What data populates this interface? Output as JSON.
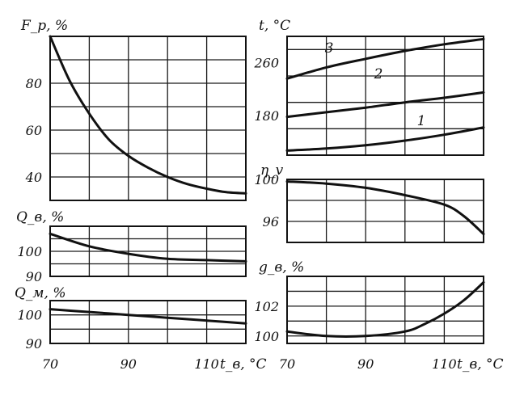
{
  "chart_data": [
    {
      "id": "fp",
      "type": "line",
      "ylabel": "F_p, %",
      "xlabel": "",
      "xlim": [
        70,
        120
      ],
      "ylim": [
        30,
        100
      ],
      "x_ticks": [],
      "y_ticks": [
        40,
        60,
        80
      ],
      "x_grid": [
        70,
        80,
        90,
        100,
        110,
        120
      ],
      "y_grid": [
        30,
        40,
        50,
        60,
        70,
        80,
        90,
        100
      ],
      "series": [
        {
          "name": "",
          "x": [
            70,
            75,
            80,
            85,
            90,
            95,
            100,
            105,
            110,
            115,
            120
          ],
          "y": [
            100,
            81,
            67,
            56,
            49,
            44,
            40,
            37,
            35,
            33.5,
            33
          ]
        }
      ]
    },
    {
      "id": "t",
      "type": "line",
      "ylabel": "t, °C",
      "xlabel": "",
      "xlim": [
        70,
        120
      ],
      "ylim": [
        120,
        300
      ],
      "x_ticks": [],
      "y_ticks": [
        180,
        260
      ],
      "x_grid": [
        70,
        80,
        90,
        100,
        110,
        120
      ],
      "y_grid": [
        120,
        160,
        200,
        240,
        280,
        300
      ],
      "series": [
        {
          "name": "1",
          "x": [
            70,
            80,
            90,
            100,
            110,
            120
          ],
          "y": [
            127,
            130,
            135,
            142,
            151,
            162
          ]
        },
        {
          "name": "2",
          "x": [
            70,
            80,
            90,
            100,
            110,
            120
          ],
          "y": [
            178,
            185,
            192,
            200,
            207,
            215
          ]
        },
        {
          "name": "3",
          "x": [
            70,
            80,
            90,
            100,
            110,
            120
          ],
          "y": [
            236,
            253,
            266,
            278,
            288,
            296
          ]
        }
      ]
    },
    {
      "id": "qb",
      "type": "line",
      "ylabel": "Q_в, %",
      "xlabel": "",
      "xlim": [
        70,
        120
      ],
      "ylim": [
        90,
        110
      ],
      "x_ticks": [],
      "y_ticks": [
        90,
        100
      ],
      "x_grid": [
        70,
        80,
        90,
        100,
        110,
        120
      ],
      "y_grid": [
        90,
        95,
        100,
        105,
        110
      ],
      "series": [
        {
          "name": "",
          "x": [
            70,
            80,
            90,
            100,
            110,
            120
          ],
          "y": [
            107,
            102,
            99,
            97,
            96.5,
            96
          ]
        }
      ]
    },
    {
      "id": "eta",
      "type": "line",
      "ylabel": "η_v",
      "xlabel": "",
      "xlim": [
        70,
        120
      ],
      "ylim": [
        94,
        100
      ],
      "x_ticks": [],
      "y_ticks": [
        96,
        100
      ],
      "x_grid": [
        70,
        80,
        90,
        100,
        110,
        120
      ],
      "y_grid": [
        94,
        96,
        98,
        100
      ],
      "series": [
        {
          "name": "",
          "x": [
            70,
            80,
            90,
            100,
            110,
            115,
            120
          ],
          "y": [
            99.8,
            99.6,
            99.2,
            98.5,
            97.6,
            96.5,
            94.8
          ]
        }
      ]
    },
    {
      "id": "qm",
      "type": "line",
      "ylabel": "Q_м, %",
      "xlabel": "t_в, °C",
      "xlim": [
        70,
        120
      ],
      "ylim": [
        90,
        105
      ],
      "x_ticks": [
        70,
        90,
        110
      ],
      "y_ticks": [
        90,
        100
      ],
      "x_grid": [
        70,
        80,
        90,
        100,
        110,
        120
      ],
      "y_grid": [
        90,
        95,
        100,
        105
      ],
      "series": [
        {
          "name": "",
          "x": [
            70,
            80,
            90,
            100,
            110,
            120
          ],
          "y": [
            102,
            101,
            100,
            99,
            98,
            97
          ]
        }
      ]
    },
    {
      "id": "gb",
      "type": "line",
      "ylabel": "g_в, %",
      "xlabel": "t_в, °C",
      "xlim": [
        70,
        120
      ],
      "ylim": [
        99.5,
        104
      ],
      "x_ticks": [
        70,
        90,
        110
      ],
      "y_ticks": [
        100,
        102
      ],
      "x_grid": [
        70,
        80,
        90,
        100,
        110,
        120
      ],
      "y_grid": [
        100,
        101,
        102,
        103
      ],
      "series": [
        {
          "name": "",
          "x": [
            70,
            80,
            90,
            100,
            105,
            110,
            115,
            120
          ],
          "y": [
            100.3,
            100,
            100,
            100.3,
            100.8,
            101.5,
            102.4,
            103.6
          ]
        }
      ]
    }
  ]
}
